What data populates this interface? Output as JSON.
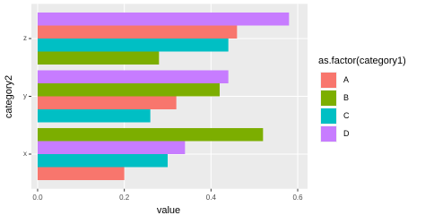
{
  "chart_data": {
    "type": "bar",
    "orientation": "horizontal",
    "position": "dodge",
    "x_label": "value",
    "y_label": "category2",
    "legend_title": "as.factor(category1)",
    "categories": [
      "x",
      "y",
      "z"
    ],
    "series": [
      {
        "name": "A",
        "color": "#F8766D"
      },
      {
        "name": "B",
        "color": "#7CAE00"
      },
      {
        "name": "C",
        "color": "#00BFC4"
      },
      {
        "name": "D",
        "color": "#C77CFF"
      }
    ],
    "rows": [
      {
        "category2": "x",
        "category1": "A",
        "value": 0.2
      },
      {
        "category2": "x",
        "category1": "C",
        "value": 0.3
      },
      {
        "category2": "x",
        "category1": "D",
        "value": 0.34
      },
      {
        "category2": "x",
        "category1": "B",
        "value": 0.52
      },
      {
        "category2": "y",
        "category1": "C",
        "value": 0.26
      },
      {
        "category2": "y",
        "category1": "A",
        "value": 0.32
      },
      {
        "category2": "y",
        "category1": "B",
        "value": 0.42
      },
      {
        "category2": "y",
        "category1": "D",
        "value": 0.44
      },
      {
        "category2": "z",
        "category1": "B",
        "value": 0.28
      },
      {
        "category2": "z",
        "category1": "C",
        "value": 0.44
      },
      {
        "category2": "z",
        "category1": "A",
        "value": 0.46
      },
      {
        "category2": "z",
        "category1": "D",
        "value": 0.58
      }
    ],
    "xlim": [
      -0.0144,
      0.6227
    ],
    "xticks": [
      {
        "value": 0,
        "label": "0.0"
      },
      {
        "value": 0.2,
        "label": "0.2"
      },
      {
        "value": 0.4,
        "label": "0.4"
      },
      {
        "value": 0.6,
        "label": "0.6"
      }
    ],
    "grid": true,
    "legend_position": "right"
  }
}
